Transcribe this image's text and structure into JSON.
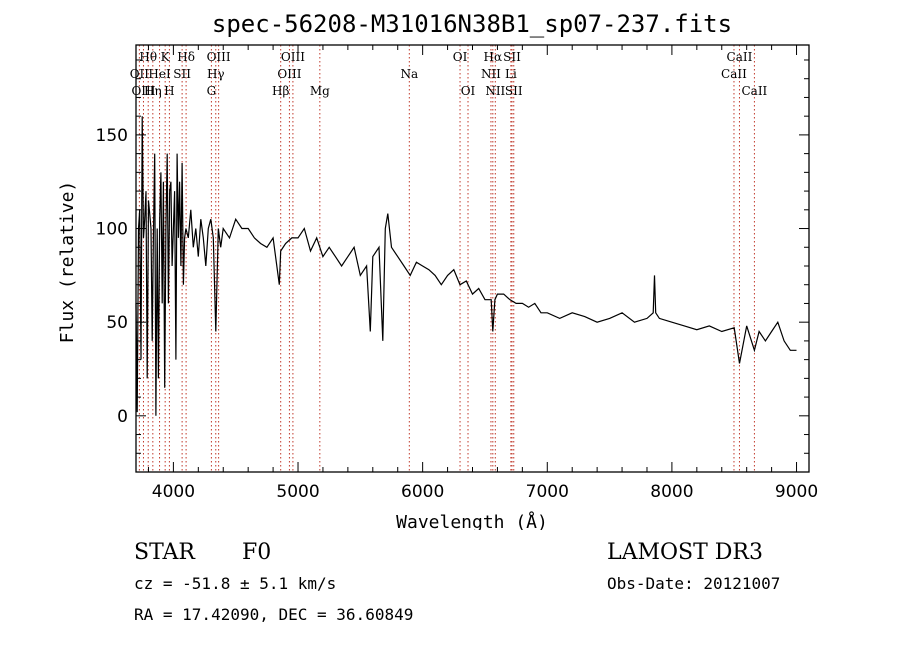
{
  "chart_data": {
    "type": "line",
    "title": "spec-56208-M31016N38B1_sp07-237.fits",
    "xlabel": "Wavelength (Å)",
    "ylabel": "Flux (relative)",
    "xlim": [
      3700,
      9100
    ],
    "ylim": [
      -30,
      198
    ],
    "xticks": [
      4000,
      5000,
      6000,
      7000,
      8000,
      9000
    ],
    "yticks": [
      0,
      50,
      100,
      150
    ],
    "series": [
      {
        "name": "flux",
        "x": [
          3700,
          3710,
          3720,
          3730,
          3740,
          3750,
          3760,
          3770,
          3780,
          3790,
          3800,
          3810,
          3820,
          3830,
          3840,
          3850,
          3860,
          3870,
          3880,
          3890,
          3900,
          3910,
          3920,
          3930,
          3940,
          3950,
          3960,
          3970,
          3980,
          3990,
          4000,
          4010,
          4020,
          4030,
          4040,
          4050,
          4060,
          4070,
          4080,
          4090,
          4100,
          4120,
          4140,
          4160,
          4180,
          4200,
          4220,
          4240,
          4260,
          4280,
          4300,
          4320,
          4340,
          4360,
          4380,
          4400,
          4450,
          4500,
          4550,
          4600,
          4650,
          4700,
          4750,
          4800,
          4850,
          4861,
          4900,
          4950,
          5000,
          5050,
          5100,
          5150,
          5200,
          5250,
          5300,
          5350,
          5400,
          5450,
          5500,
          5550,
          5580,
          5600,
          5650,
          5680,
          5700,
          5720,
          5750,
          5800,
          5850,
          5900,
          5950,
          6000,
          6050,
          6100,
          6150,
          6200,
          6250,
          6300,
          6350,
          6400,
          6450,
          6500,
          6550,
          6563,
          6580,
          6600,
          6650,
          6700,
          6750,
          6800,
          6850,
          6900,
          6950,
          7000,
          7100,
          7200,
          7300,
          7400,
          7500,
          7600,
          7700,
          7800,
          7850,
          7860,
          7870,
          7900,
          8000,
          8100,
          8200,
          8300,
          8400,
          8500,
          8542,
          8600,
          8662,
          8700,
          8750,
          8800,
          8850,
          8900,
          8950,
          9000
        ],
        "y": [
          60,
          2,
          100,
          110,
          30,
          160,
          95,
          105,
          120,
          20,
          115,
          108,
          100,
          40,
          95,
          140,
          0,
          100,
          20,
          105,
          130,
          60,
          125,
          15,
          100,
          140,
          60,
          120,
          125,
          80,
          100,
          120,
          30,
          140,
          95,
          125,
          80,
          135,
          70,
          95,
          100,
          95,
          110,
          90,
          100,
          85,
          105,
          95,
          80,
          100,
          105,
          95,
          45,
          100,
          90,
          100,
          95,
          105,
          100,
          100,
          95,
          92,
          90,
          95,
          70,
          88,
          92,
          95,
          95,
          100,
          88,
          95,
          85,
          90,
          85,
          80,
          85,
          90,
          75,
          80,
          45,
          85,
          90,
          40,
          100,
          108,
          90,
          85,
          80,
          75,
          82,
          80,
          78,
          75,
          70,
          75,
          78,
          70,
          72,
          65,
          68,
          62,
          62,
          45,
          62,
          65,
          65,
          62,
          60,
          60,
          58,
          60,
          55,
          55,
          52,
          55,
          53,
          50,
          52,
          55,
          50,
          52,
          55,
          75,
          55,
          52,
          50,
          48,
          46,
          48,
          45,
          47,
          28,
          48,
          35,
          45,
          40,
          45,
          50,
          40,
          35,
          35
        ],
        "line_color": "#000000"
      }
    ],
    "lines": [
      {
        "label": "Hθ",
        "w": 3798,
        "row": 1
      },
      {
        "label": "K",
        "w": 3934,
        "row": 1
      },
      {
        "label": "Hδ",
        "w": 4102,
        "row": 1
      },
      {
        "label": "OIII",
        "w": 4363,
        "row": 1
      },
      {
        "label": "OIII",
        "w": 4959,
        "row": 1
      },
      {
        "label": "OI",
        "w": 6300,
        "row": 1
      },
      {
        "label": "Hα",
        "w": 6563,
        "row": 1
      },
      {
        "label": "SII",
        "w": 6717,
        "row": 1
      },
      {
        "label": "CaII",
        "w": 8542,
        "row": 1
      },
      {
        "label": "OII",
        "w": 3727,
        "row": 2
      },
      {
        "label": "HeI",
        "w": 3889,
        "row": 2
      },
      {
        "label": "SII",
        "w": 4070,
        "row": 2
      },
      {
        "label": "Hγ",
        "w": 4340,
        "row": 2
      },
      {
        "label": "OIII",
        "w": 4931,
        "row": 2
      },
      {
        "label": "Na",
        "w": 5893,
        "row": 2
      },
      {
        "label": "NII",
        "w": 6548,
        "row": 2
      },
      {
        "label": "Li",
        "w": 6708,
        "row": 2
      },
      {
        "label": "CaII",
        "w": 8498,
        "row": 2
      },
      {
        "label": "OIII",
        "w": 3760,
        "row": 3
      },
      {
        "label": "Hη",
        "w": 3835,
        "row": 3
      },
      {
        "label": "H",
        "w": 3968,
        "row": 3
      },
      {
        "label": "G",
        "w": 4305,
        "row": 3
      },
      {
        "label": "Hβ",
        "w": 4861,
        "row": 3
      },
      {
        "label": "Mg",
        "w": 5175,
        "row": 3
      },
      {
        "label": "OI",
        "w": 6364,
        "row": 3
      },
      {
        "label": "NII",
        "w": 6583,
        "row": 3
      },
      {
        "label": "SII",
        "w": 6731,
        "row": 3
      },
      {
        "label": "CaII",
        "w": 8662,
        "row": 3
      }
    ],
    "colors": {
      "line_marker": "#c0392b",
      "axes": "#000000",
      "text": "#000000"
    }
  },
  "info": {
    "object_class": "STAR",
    "subclass": "F0",
    "survey": "LAMOST DR3",
    "cz": "cz = -51.8 ± 5.1 km/s",
    "obs_date": "Obs-Date: 20121007",
    "coords": "RA =  17.42090, DEC =  36.60849"
  }
}
